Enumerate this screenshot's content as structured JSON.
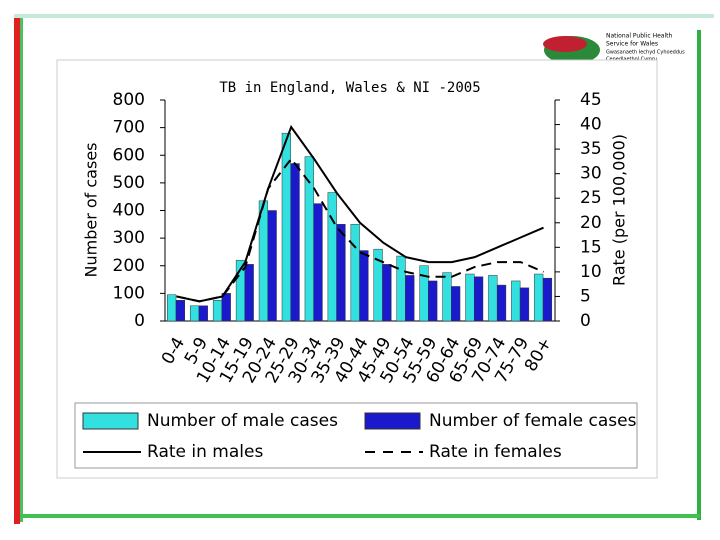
{
  "logo": {
    "lines": [
      "National Public Health",
      "Service for Wales",
      "Gwasanaeth Iechyd Cyhoeddus",
      "Cenedlaethol Cymru"
    ]
  },
  "chart_data": {
    "type": "bar",
    "title": "TB in England, Wales & NI -2005",
    "y_label": "Number of cases",
    "y2_label": "Rate (per 100,000)",
    "categories": [
      "0-4",
      "5-9",
      "10-14",
      "15-19",
      "20-24",
      "25-29",
      "30-34",
      "35-39",
      "40-44",
      "45-49",
      "50-54",
      "55-59",
      "60-64",
      "65-69",
      "70-74",
      "75-79",
      "80+"
    ],
    "series": [
      {
        "name": "Number of male cases",
        "type": "bar",
        "color": "#33e0e0",
        "values": [
          95,
          55,
          75,
          220,
          435,
          680,
          595,
          465,
          350,
          260,
          235,
          200,
          175,
          170,
          165,
          145,
          170
        ]
      },
      {
        "name": "Number of female cases",
        "type": "bar",
        "color": "#1a1acc",
        "values": [
          75,
          55,
          100,
          205,
          400,
          570,
          425,
          350,
          255,
          205,
          165,
          145,
          125,
          160,
          130,
          120,
          155
        ]
      },
      {
        "name": "Rate in males",
        "type": "line",
        "axis": "y2",
        "color": "#000000",
        "line_style": "solid",
        "values": [
          5,
          4,
          5,
          12,
          27,
          39.5,
          33,
          26,
          20,
          16,
          13,
          12,
          12,
          13,
          15,
          17,
          19
        ]
      },
      {
        "name": "Rate in females",
        "type": "line",
        "axis": "y2",
        "color": "#000000",
        "line_style": "dashed",
        "values": [
          5,
          4,
          5,
          11,
          27,
          33,
          27,
          19,
          14,
          12,
          10,
          9,
          9,
          11,
          12,
          12,
          10
        ]
      }
    ],
    "ylim": [
      0,
      800
    ],
    "yticks": [
      0,
      100,
      200,
      300,
      400,
      500,
      600,
      700,
      800
    ],
    "y2lim": [
      0,
      45
    ],
    "y2ticks": [
      0,
      5,
      10,
      15,
      20,
      25,
      30,
      35,
      40,
      45
    ]
  }
}
